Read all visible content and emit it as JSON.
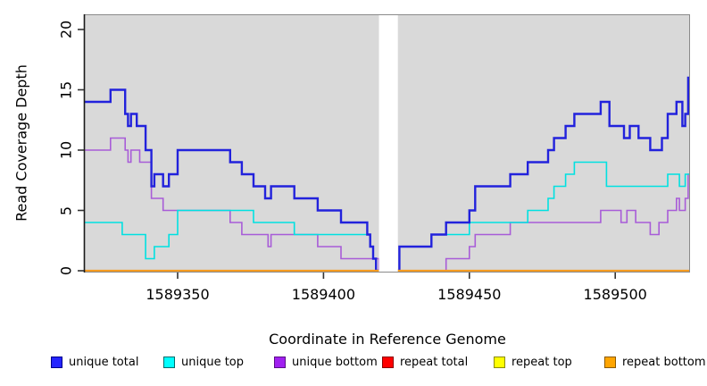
{
  "chart_data": {
    "type": "line",
    "subtype": "step-coverage",
    "title": "",
    "xlabel": "Coordinate in Reference Genome",
    "ylabel": "Read Coverage Depth",
    "xlim": [
      1589318,
      1589526
    ],
    "ylim": [
      0,
      20
    ],
    "x_ticks": [
      1589350,
      1589400,
      1589450,
      1589500
    ],
    "y_ticks": [
      0,
      5,
      10,
      15,
      20
    ],
    "grid": false,
    "panel_color": "#d9d9d9",
    "gap_region": {
      "start": 1589419,
      "end": 1589425.5,
      "color": "#ffffff"
    },
    "x_end": 1589525.5,
    "series": [
      {
        "name": "repeat total",
        "color": "#e02020",
        "width": 1.4,
        "steps": [
          [
            1589318,
            0
          ]
        ]
      },
      {
        "name": "repeat top",
        "color": "#ffff00",
        "width": 1.4,
        "steps": [
          [
            1589318,
            0
          ]
        ]
      },
      {
        "name": "unique bottom",
        "color": "#a85cd8",
        "width": 1.6,
        "steps": [
          [
            1589318,
            10
          ],
          [
            1589327,
            11
          ],
          [
            1589332,
            10
          ],
          [
            1589333,
            9
          ],
          [
            1589334,
            10
          ],
          [
            1589337,
            9
          ],
          [
            1589341,
            6
          ],
          [
            1589345,
            5
          ],
          [
            1589368,
            4
          ],
          [
            1589372,
            3
          ],
          [
            1589381,
            2
          ],
          [
            1589382,
            3
          ],
          [
            1589398,
            2
          ],
          [
            1589406,
            1
          ],
          [
            1589419,
            0
          ],
          [
            1589442,
            1
          ],
          [
            1589450,
            2
          ],
          [
            1589452,
            3
          ],
          [
            1589464,
            4
          ],
          [
            1589495,
            5
          ],
          [
            1589502,
            4
          ],
          [
            1589504,
            5
          ],
          [
            1589507,
            4
          ],
          [
            1589512,
            3
          ],
          [
            1589515,
            4
          ],
          [
            1589518,
            5
          ],
          [
            1589521,
            6
          ],
          [
            1589522,
            5
          ],
          [
            1589524,
            6
          ],
          [
            1589525,
            8
          ]
        ]
      },
      {
        "name": "unique top",
        "color": "#00e1e1",
        "width": 1.6,
        "steps": [
          [
            1589318,
            4
          ],
          [
            1589331,
            3
          ],
          [
            1589339,
            1
          ],
          [
            1589342,
            2
          ],
          [
            1589347,
            3
          ],
          [
            1589350,
            5
          ],
          [
            1589376,
            4
          ],
          [
            1589390,
            3
          ],
          [
            1589416,
            2
          ],
          [
            1589417,
            1
          ],
          [
            1589418,
            0
          ],
          [
            1589426,
            2
          ],
          [
            1589437,
            3
          ],
          [
            1589450,
            4
          ],
          [
            1589470,
            5
          ],
          [
            1589477,
            6
          ],
          [
            1589479,
            7
          ],
          [
            1589483,
            8
          ],
          [
            1589486,
            9
          ],
          [
            1589497,
            7
          ],
          [
            1589518,
            8
          ],
          [
            1589522,
            7
          ],
          [
            1589524,
            8
          ]
        ]
      },
      {
        "name": "unique total",
        "color": "#2222dc",
        "width": 2.4,
        "steps": [
          [
            1589318,
            14
          ],
          [
            1589327,
            15
          ],
          [
            1589332,
            13
          ],
          [
            1589333,
            12
          ],
          [
            1589334,
            13
          ],
          [
            1589336,
            12
          ],
          [
            1589339,
            10
          ],
          [
            1589341,
            7
          ],
          [
            1589342,
            8
          ],
          [
            1589345,
            7
          ],
          [
            1589347,
            8
          ],
          [
            1589350,
            10
          ],
          [
            1589368,
            9
          ],
          [
            1589372,
            8
          ],
          [
            1589376,
            7
          ],
          [
            1589380,
            6
          ],
          [
            1589382,
            7
          ],
          [
            1589390,
            6
          ],
          [
            1589398,
            5
          ],
          [
            1589406,
            4
          ],
          [
            1589415,
            3
          ],
          [
            1589416,
            2
          ],
          [
            1589417,
            1
          ],
          [
            1589418,
            0
          ],
          [
            1589426,
            2
          ],
          [
            1589437,
            3
          ],
          [
            1589442,
            4
          ],
          [
            1589450,
            5
          ],
          [
            1589452,
            7
          ],
          [
            1589464,
            8
          ],
          [
            1589470,
            9
          ],
          [
            1589477,
            10
          ],
          [
            1589479,
            11
          ],
          [
            1589483,
            12
          ],
          [
            1589486,
            13
          ],
          [
            1589495,
            14
          ],
          [
            1589498,
            12
          ],
          [
            1589503,
            11
          ],
          [
            1589505,
            12
          ],
          [
            1589508,
            11
          ],
          [
            1589512,
            10
          ],
          [
            1589516,
            11
          ],
          [
            1589518,
            13
          ],
          [
            1589521,
            14
          ],
          [
            1589523,
            12
          ],
          [
            1589524,
            13
          ],
          [
            1589525,
            16
          ]
        ]
      },
      {
        "name": "repeat bottom",
        "color": "#f59b20",
        "width": 2.2,
        "steps": [
          [
            1589318,
            0
          ]
        ]
      }
    ],
    "legend": {
      "position": "bottom",
      "items": [
        {
          "label": "unique total",
          "fill": "#2424ff",
          "border": "#00008b"
        },
        {
          "label": "unique top",
          "fill": "#00ffff",
          "border": "#006a6a"
        },
        {
          "label": "unique bottom",
          "fill": "#a020f0",
          "border": "#5a0d87"
        },
        {
          "label": "repeat total",
          "fill": "#ff0000",
          "border": "#8b0000"
        },
        {
          "label": "repeat top",
          "fill": "#ffff00",
          "border": "#8b8b00"
        },
        {
          "label": "repeat bottom",
          "fill": "#ffa500",
          "border": "#8b5a00"
        }
      ]
    }
  }
}
